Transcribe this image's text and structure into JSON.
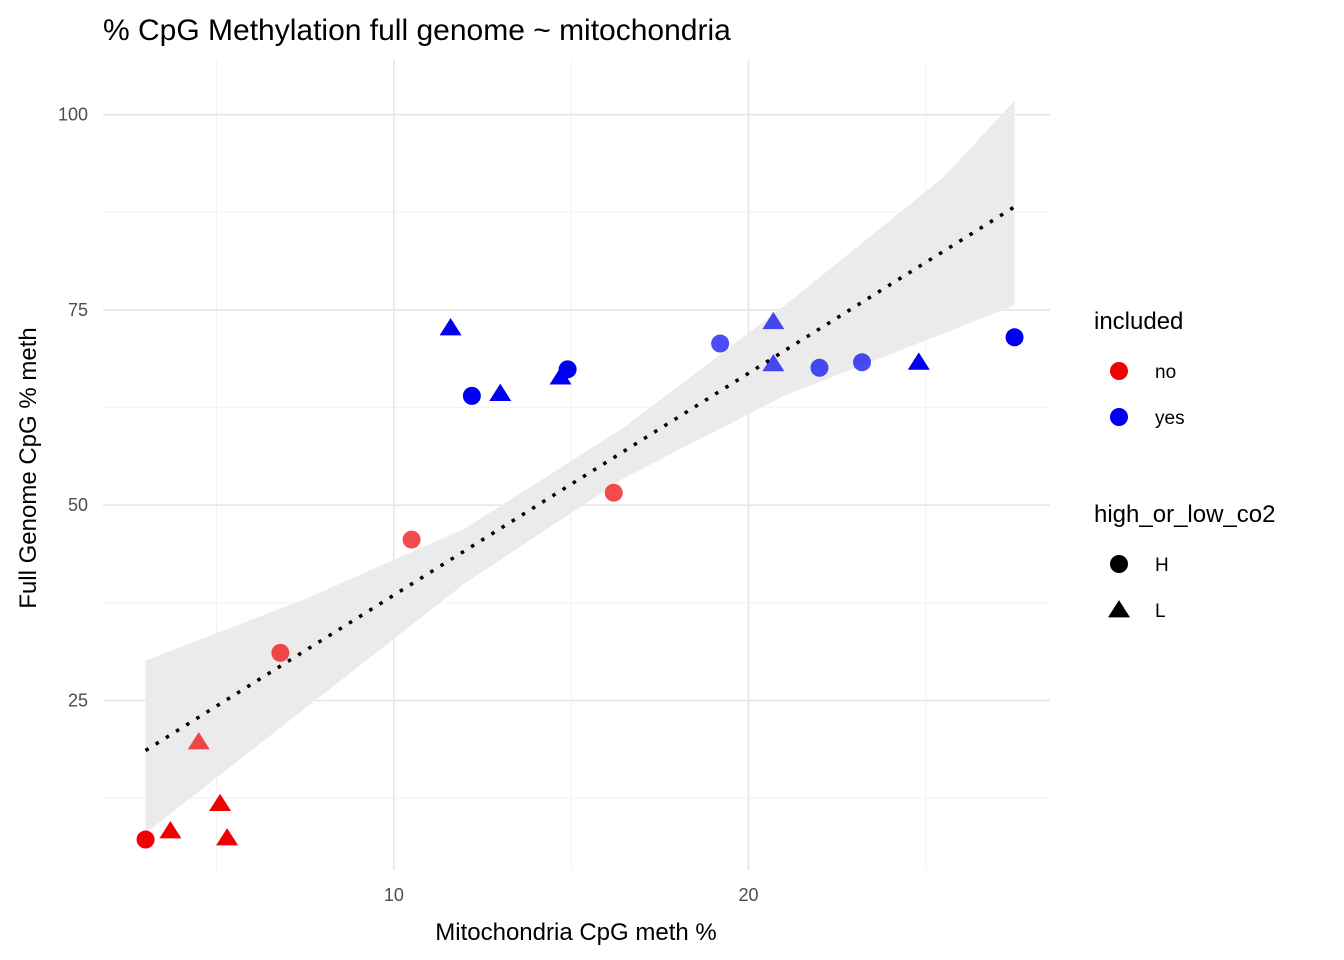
{
  "chart_data": {
    "type": "scatter",
    "title": "% CpG Methylation full genome ~ mitochondria",
    "xlabel": "Mitochondria CpG meth %",
    "ylabel": "Full Genome CpG % meth",
    "xlim": [
      1.8,
      28.5
    ],
    "ylim": [
      3.3,
      107
    ],
    "x_ticks": [
      10,
      20
    ],
    "x_ticks_minor": [
      5,
      15,
      25
    ],
    "y_ticks": [
      25,
      50,
      75,
      100
    ],
    "y_ticks_minor": [
      12.5,
      37.5,
      62.5,
      87.5
    ],
    "grid": true,
    "colors": {
      "no": "#f00000",
      "yes": "#0000ef",
      "band": "#ebebeb",
      "line": "#000000"
    },
    "trend": {
      "style": "dotted",
      "x": [
        3.0,
        27.5
      ],
      "y": [
        18.6,
        88.2
      ],
      "band_lower": [
        8.0,
        75.6
      ],
      "band_upper": [
        30.1,
        101.8
      ],
      "band_mid_x": [
        3.0,
        7.5,
        12.0,
        16.5,
        21.0,
        25.5,
        27.5
      ],
      "band_mid_lower": [
        8.0,
        24.0,
        40.0,
        53.5,
        64.0,
        72.0,
        75.6
      ],
      "band_mid_upper": [
        30.1,
        38.0,
        47.0,
        60.0,
        75.5,
        92.0,
        101.8
      ]
    },
    "points": [
      {
        "x": 3.0,
        "y": 7.2,
        "included": "no",
        "co2": "H",
        "alpha": 1.0
      },
      {
        "x": 3.7,
        "y": 8.3,
        "included": "no",
        "co2": "L",
        "alpha": 1.0
      },
      {
        "x": 4.5,
        "y": 19.7,
        "included": "no",
        "co2": "L",
        "alpha": 0.7
      },
      {
        "x": 5.1,
        "y": 11.8,
        "included": "no",
        "co2": "L",
        "alpha": 1.0
      },
      {
        "x": 5.3,
        "y": 7.4,
        "included": "no",
        "co2": "L",
        "alpha": 1.0
      },
      {
        "x": 6.8,
        "y": 31.1,
        "included": "no",
        "co2": "H",
        "alpha": 0.7
      },
      {
        "x": 10.5,
        "y": 45.6,
        "included": "no",
        "co2": "H",
        "alpha": 0.7
      },
      {
        "x": 16.2,
        "y": 51.6,
        "included": "no",
        "co2": "H",
        "alpha": 0.7
      },
      {
        "x": 11.6,
        "y": 72.7,
        "included": "yes",
        "co2": "L",
        "alpha": 1.0
      },
      {
        "x": 12.2,
        "y": 64.0,
        "included": "yes",
        "co2": "H",
        "alpha": 1.0
      },
      {
        "x": 13.0,
        "y": 64.3,
        "included": "yes",
        "co2": "L",
        "alpha": 1.0
      },
      {
        "x": 14.7,
        "y": 66.4,
        "included": "yes",
        "co2": "L",
        "alpha": 1.0
      },
      {
        "x": 14.9,
        "y": 67.4,
        "included": "yes",
        "co2": "H",
        "alpha": 1.0
      },
      {
        "x": 19.2,
        "y": 70.7,
        "included": "yes",
        "co2": "H",
        "alpha": 0.7
      },
      {
        "x": 20.7,
        "y": 73.5,
        "included": "yes",
        "co2": "L",
        "alpha": 0.7
      },
      {
        "x": 20.7,
        "y": 68.1,
        "included": "yes",
        "co2": "L",
        "alpha": 0.7
      },
      {
        "x": 22.0,
        "y": 67.6,
        "included": "yes",
        "co2": "H",
        "alpha": 0.7
      },
      {
        "x": 23.2,
        "y": 68.3,
        "included": "yes",
        "co2": "H",
        "alpha": 0.7
      },
      {
        "x": 24.8,
        "y": 68.3,
        "included": "yes",
        "co2": "L",
        "alpha": 1.0
      },
      {
        "x": 27.5,
        "y": 71.5,
        "included": "yes",
        "co2": "H",
        "alpha": 1.0
      }
    ],
    "legend": {
      "placement": "right",
      "color_title": "included",
      "color_items": [
        {
          "label": "no",
          "color": "#f00000"
        },
        {
          "label": "yes",
          "color": "#0000ef"
        }
      ],
      "shape_title": "high_or_low_co2",
      "shape_items": [
        {
          "label": "H",
          "shape": "circle"
        },
        {
          "label": "L",
          "shape": "triangle"
        }
      ]
    }
  }
}
